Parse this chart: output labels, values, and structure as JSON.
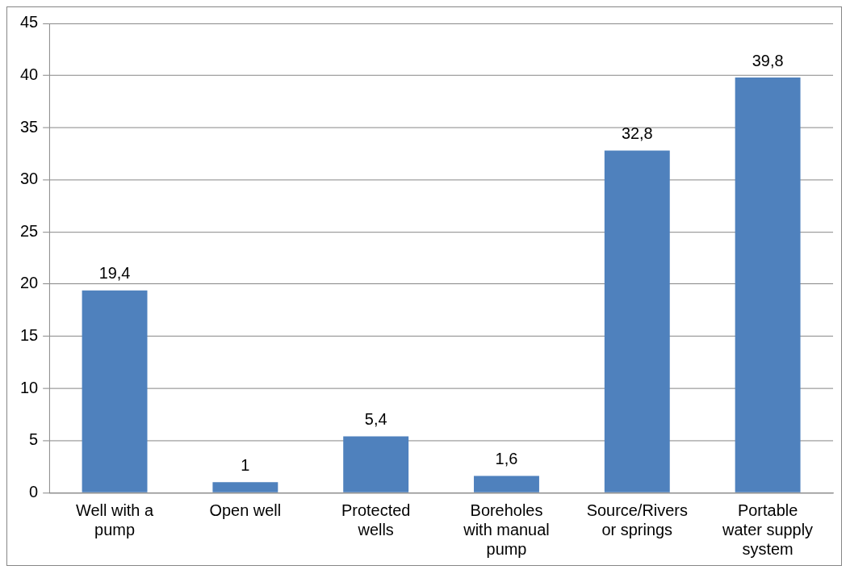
{
  "chart_data": {
    "type": "bar",
    "categories": [
      "Well with a pump",
      "Open well",
      "Protected wells",
      "Boreholes with manual pump",
      "Source/Rivers or springs",
      "Portable water supply system"
    ],
    "values": [
      19.4,
      1,
      5.4,
      1.6,
      32.8,
      39.8
    ],
    "value_labels": [
      "19,4",
      "1",
      "5,4",
      "1,6",
      "32,8",
      "39,8"
    ],
    "color": "#4f81bd",
    "ylim": [
      0,
      45
    ],
    "yticks": [
      0,
      5,
      10,
      15,
      20,
      25,
      30,
      35,
      40,
      45
    ],
    "grid": "y",
    "legend": false
  }
}
